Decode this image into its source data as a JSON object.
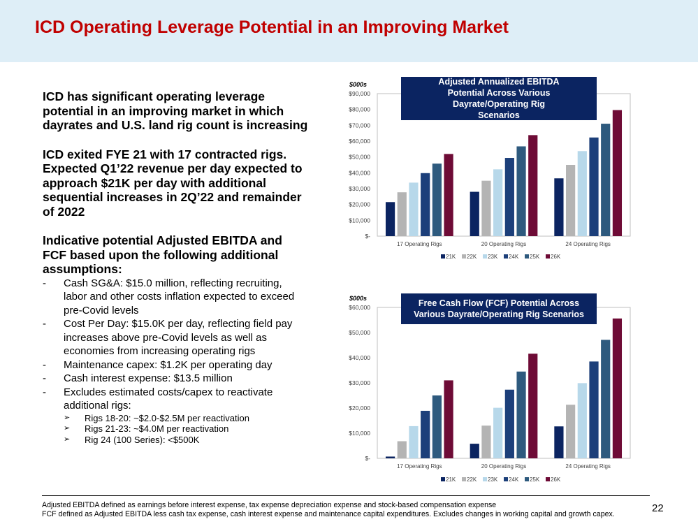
{
  "title": "ICD Operating Leverage Potential in an Improving Market",
  "left": {
    "para1": "ICD has significant operating leverage potential in an improving market in which dayrates and U.S. land rig count is increasing",
    "para2": "ICD exited FYE 21 with 17 contracted rigs.  Expected Q1’22 revenue per day expected to approach $21K per day with additional sequential increases in 2Q’22 and remainder of 2022",
    "para3": "Indicative potential Adjusted EBITDA and FCF based upon the following additional assumptions:",
    "dash": "-",
    "arrow": "➢",
    "bullets": [
      "Cash SG&A:  $15.0 million, reflecting recruiting, labor and other costs inflation expected to exceed pre-Covid levels",
      "Cost Per Day:  $15.0K per day, reflecting field pay increases above pre-Covid levels as well as economies from increasing operating rigs",
      "Maintenance capex:  $1.2K per operating day",
      "Cash interest expense:  $13.5 million",
      "Excludes estimated costs/capex to reactivate additional rigs:"
    ],
    "subbullets": [
      "Rigs 18-20:  ~$2.0-$2.5M per reactivation",
      "Rigs 21-23:  ~$4.0M per reactivation",
      "Rig 24 (100 Series):  <$500K"
    ]
  },
  "footnotes": [
    "Adjusted EBITDA defined as earnings before interest expense, tax expense depreciation expense and stock-based compensation expense",
    "FCF defined as Adjusted EBITDA less cash tax expense, cash interest expense and maintenance capital expenditures.  Excludes changes in working capital and growth capex."
  ],
  "page_number": "22",
  "colors": {
    "title": "#c00000",
    "header_bg": "#deeef7",
    "chart_title_bg": "#0b2461",
    "series": [
      "#0b2461",
      "#b4b4b4",
      "#b7d8ea",
      "#1c3f7a",
      "#2e5a7e",
      "#6e0b36"
    ]
  },
  "chart_data": [
    {
      "type": "bar",
      "title": "Adjusted Annualized EBITDA Potential Across Various Dayrate/Operating Rig Scenarios",
      "unit_label": "$000s",
      "categories": [
        "17 Operating Rigs",
        "20 Operating Rigs",
        "24 Operating Rigs"
      ],
      "series": [
        {
          "name": "21K",
          "values": [
            21500,
            28000,
            36500
          ]
        },
        {
          "name": "22K",
          "values": [
            27700,
            35000,
            45000
          ]
        },
        {
          "name": "23K",
          "values": [
            33800,
            42200,
            53700
          ]
        },
        {
          "name": "24K",
          "values": [
            39800,
            49400,
            62300
          ]
        },
        {
          "name": "25K",
          "values": [
            45800,
            56700,
            71000
          ]
        },
        {
          "name": "26K",
          "values": [
            51900,
            63800,
            79600
          ]
        }
      ],
      "ylim": [
        0,
        90000
      ],
      "yticks": [
        0,
        10000,
        20000,
        30000,
        40000,
        50000,
        60000,
        70000,
        80000,
        90000
      ],
      "ytick_labels": [
        "$-",
        "$10,000",
        "$20,000",
        "$30,000",
        "$40,000",
        "$50,000",
        "$60,000",
        "$70,000",
        "$80,000",
        "$90,000"
      ],
      "legend_position": "bottom"
    },
    {
      "type": "bar",
      "title": "Free Cash Flow (FCF) Potential Across Various Dayrate/Operating Rig Scenarios",
      "unit_label": "$000s",
      "categories": [
        "17 Operating Rigs",
        "20 Operating Rigs",
        "24 Operating Rigs"
      ],
      "series": [
        {
          "name": "21K",
          "values": [
            700,
            5800,
            12700
          ]
        },
        {
          "name": "22K",
          "values": [
            6800,
            13000,
            21300
          ]
        },
        {
          "name": "23K",
          "values": [
            12800,
            20100,
            29900
          ]
        },
        {
          "name": "24K",
          "values": [
            18900,
            27300,
            38500
          ]
        },
        {
          "name": "25K",
          "values": [
            25000,
            34500,
            47100
          ]
        },
        {
          "name": "26K",
          "values": [
            31000,
            41600,
            55600
          ]
        }
      ],
      "ylim": [
        0,
        60000
      ],
      "yticks": [
        0,
        10000,
        20000,
        30000,
        40000,
        50000,
        60000
      ],
      "ytick_labels": [
        "$-",
        "$10,000",
        "$20,000",
        "$30,000",
        "$40,000",
        "$50,000",
        "$60,000"
      ],
      "legend_position": "bottom"
    }
  ]
}
